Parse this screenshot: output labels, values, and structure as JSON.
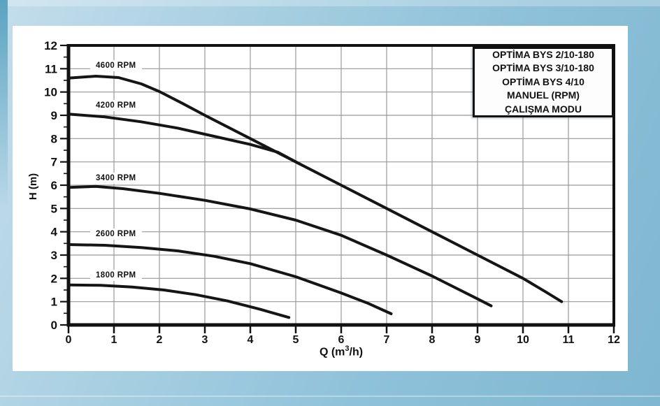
{
  "legend": {
    "lines": [
      "OPTİMA BYS 2/10-180",
      "OPTİMA BYS 3/10-180",
      "OPTİMA BYS 4/10",
      "MANUEL (RPM)",
      "ÇALIŞMA MODU"
    ]
  },
  "colors": {
    "page_background_top": "#c3ddeb",
    "page_background_bottom": "#7fb6d0",
    "panel": "#ffffff",
    "grid": "#999999",
    "axis": "#111111",
    "curve": "#151515",
    "text": "#111111",
    "legend_background": "#fdfdfd"
  },
  "chart_data": {
    "type": "line",
    "title": "",
    "xlabel": "Q (m³/h)",
    "xlabel_parts": {
      "pre": "Q (m",
      "sup": "3",
      "post": "/h)"
    },
    "ylabel": "H (m)",
    "xlim": [
      0,
      12
    ],
    "ylim": [
      0,
      12
    ],
    "grid": true,
    "legend_position": "top-right",
    "x_ticks": [
      0,
      1,
      2,
      3,
      4,
      5,
      6,
      7,
      8,
      9,
      10,
      11,
      12
    ],
    "y_ticks": [
      0,
      1,
      2,
      3,
      4,
      5,
      6,
      7,
      8,
      9,
      10,
      11,
      12
    ],
    "series": [
      {
        "name": "4600 RPM",
        "points": [
          [
            0,
            10.6
          ],
          [
            0.6,
            10.68
          ],
          [
            1.1,
            10.62
          ],
          [
            1.6,
            10.35
          ],
          [
            2,
            10.02
          ],
          [
            2.5,
            9.52
          ],
          [
            3,
            9.0
          ],
          [
            4,
            8.0
          ],
          [
            5,
            7.0
          ],
          [
            6,
            6.0
          ],
          [
            7,
            5.0
          ],
          [
            8,
            4.0
          ],
          [
            9,
            3.0
          ],
          [
            10,
            2.0
          ],
          [
            10.5,
            1.42
          ],
          [
            10.85,
            1.0
          ]
        ]
      },
      {
        "name": "4200 RPM",
        "points": [
          [
            0,
            9.05
          ],
          [
            0.8,
            8.93
          ],
          [
            1.6,
            8.72
          ],
          [
            2.4,
            8.45
          ],
          [
            3.2,
            8.1
          ],
          [
            4,
            7.75
          ],
          [
            4.6,
            7.42
          ],
          [
            5.1,
            6.9
          ]
        ]
      },
      {
        "name": "3400 RPM",
        "points": [
          [
            0,
            5.9
          ],
          [
            0.6,
            5.95
          ],
          [
            1.2,
            5.85
          ],
          [
            2,
            5.65
          ],
          [
            3,
            5.35
          ],
          [
            4,
            4.98
          ],
          [
            5,
            4.5
          ],
          [
            6,
            3.85
          ],
          [
            7,
            3.0
          ],
          [
            8,
            2.1
          ],
          [
            9,
            1.12
          ],
          [
            9.3,
            0.82
          ]
        ]
      },
      {
        "name": "2600 RPM",
        "points": [
          [
            0,
            3.45
          ],
          [
            0.8,
            3.42
          ],
          [
            1.6,
            3.32
          ],
          [
            2.4,
            3.18
          ],
          [
            3.2,
            2.95
          ],
          [
            4,
            2.63
          ],
          [
            5,
            2.07
          ],
          [
            6,
            1.37
          ],
          [
            6.6,
            0.92
          ],
          [
            7.1,
            0.48
          ]
        ]
      },
      {
        "name": "1800 RPM",
        "points": [
          [
            0,
            1.72
          ],
          [
            0.7,
            1.7
          ],
          [
            1.4,
            1.63
          ],
          [
            2.1,
            1.5
          ],
          [
            2.8,
            1.3
          ],
          [
            3.5,
            1.03
          ],
          [
            4.2,
            0.68
          ],
          [
            4.85,
            0.32
          ]
        ]
      }
    ],
    "curve_labels": [
      {
        "text": "4600 RPM",
        "q": 0.6,
        "h": 11.13
      },
      {
        "text": "4200 RPM",
        "q": 0.6,
        "h": 9.42
      },
      {
        "text": "3400 RPM",
        "q": 0.6,
        "h": 6.3
      },
      {
        "text": "2600 RPM",
        "q": 0.6,
        "h": 3.9
      },
      {
        "text": "1800 RPM",
        "q": 0.6,
        "h": 2.13
      }
    ]
  }
}
